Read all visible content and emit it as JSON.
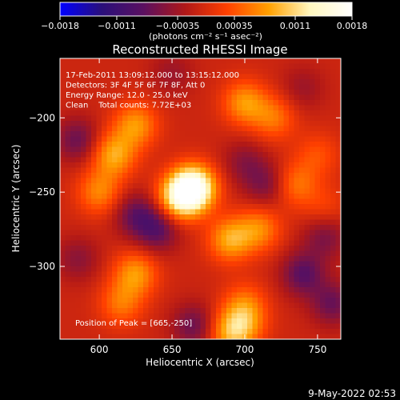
{
  "chart_data": {
    "type": "heatmap",
    "title": "Reconstructed RHESSI Image",
    "xlabel": "Heliocentric X (arcsec)",
    "ylabel": "Heliocentric Y (arcsec)",
    "xlim": [
      573,
      766
    ],
    "ylim": [
      -349,
      -160
    ],
    "xticks": [
      600,
      650,
      700,
      750
    ],
    "yticks": [
      -200,
      -250,
      -300
    ],
    "xtick_labels": [
      "600",
      "650",
      "700",
      "750"
    ],
    "ytick_labels": [
      "−200",
      "−250",
      "−300"
    ],
    "colorbar": {
      "range": [
        -0.0018,
        0.0018
      ],
      "tick_values": [
        -0.0018,
        -0.0011,
        -0.00035,
        0.00035,
        0.0011,
        0.0018
      ],
      "tick_labels": [
        "−0.0018",
        "−0.0011",
        "−0.00035",
        "0.00035",
        "0.0011",
        "0.0018"
      ],
      "unit_label": "(photons cm⁻² s⁻¹ asec⁻²)",
      "colors": [
        "#0000ff",
        "#2a0f7a",
        "#5a1060",
        "#b01818",
        "#ff4000",
        "#ffa000",
        "#fff8c0",
        "#ffffff"
      ]
    },
    "annotations": [
      "17-Feb-2011 13:09:12.000 to 13:15:12.000",
      "Detectors: 3F 4F 5F 6F 7F 8F, Att 0",
      "Energy Range: 12.0 - 25.0 keV",
      "Clean    Total counts: 7.72E+03"
    ],
    "peak_label": "Position of Peak = [665,-250]",
    "peak": [
      665,
      -250
    ],
    "features": [
      {
        "x": 665,
        "y": -247,
        "value": 0.0018
      },
      {
        "x": 655,
        "y": -254,
        "value": 0.0012
      },
      {
        "x": 610,
        "y": -225,
        "value": 0.0009
      },
      {
        "x": 625,
        "y": -205,
        "value": 0.0008
      },
      {
        "x": 600,
        "y": -250,
        "value": 0.0007
      },
      {
        "x": 700,
        "y": -190,
        "value": 0.0008
      },
      {
        "x": 720,
        "y": -200,
        "value": 0.0006
      },
      {
        "x": 690,
        "y": -282,
        "value": 0.0009
      },
      {
        "x": 710,
        "y": -275,
        "value": 0.0007
      },
      {
        "x": 625,
        "y": -305,
        "value": 0.0008
      },
      {
        "x": 615,
        "y": -325,
        "value": 0.0006
      },
      {
        "x": 700,
        "y": -325,
        "value": 0.0005
      },
      {
        "x": 735,
        "y": -245,
        "value": 0.0006
      },
      {
        "x": 750,
        "y": -225,
        "value": 0.0004
      },
      {
        "x": 690,
        "y": -345,
        "value": 0.0008
      },
      {
        "x": 700,
        "y": -338,
        "value": 0.0006
      },
      {
        "x": 755,
        "y": -260,
        "value": 0.0003
      },
      {
        "x": 585,
        "y": -215,
        "value": -0.0006
      },
      {
        "x": 640,
        "y": -275,
        "value": -0.0007
      },
      {
        "x": 625,
        "y": -265,
        "value": -0.0006
      },
      {
        "x": 715,
        "y": -245,
        "value": -0.0005
      },
      {
        "x": 700,
        "y": -230,
        "value": -0.0004
      },
      {
        "x": 665,
        "y": -340,
        "value": -0.0006
      },
      {
        "x": 740,
        "y": -305,
        "value": -0.0007
      },
      {
        "x": 755,
        "y": -280,
        "value": -0.0005
      },
      {
        "x": 760,
        "y": -325,
        "value": -0.0006
      },
      {
        "x": 740,
        "y": -180,
        "value": -0.0003
      },
      {
        "x": 585,
        "y": -295,
        "value": -0.0004
      },
      {
        "x": 650,
        "y": -170,
        "value": -0.0003
      }
    ]
  },
  "footer": {
    "timestamp": "9-May-2022 02:53"
  }
}
